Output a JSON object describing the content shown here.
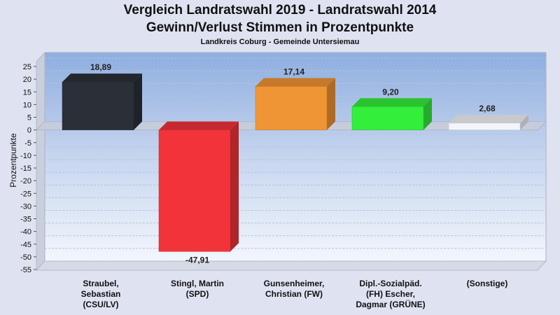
{
  "title": "Vergleich Landratswahl 2019 - Landratswahl 2014",
  "subtitle": "Gewinn/Verlust Stimmen in Prozentpunkte",
  "caption": "Landkreis Coburg - Gemeinde Untersiemau",
  "chart_data": {
    "type": "bar",
    "ylabel": "Prozentpunkte",
    "ylim": [
      -55,
      25
    ],
    "yticks": [
      25,
      20,
      15,
      10,
      5,
      0,
      -5,
      -10,
      -15,
      -20,
      -25,
      -30,
      -35,
      -40,
      -45,
      -50,
      -55
    ],
    "grid": true,
    "categories": [
      [
        "Straubel,",
        "Sebastian",
        "(CSU/LV)"
      ],
      [
        "Stingl, Martin",
        "(SPD)"
      ],
      [
        "Gunsenheimer,",
        "Christian (FW)"
      ],
      [
        "Dipl.-Sozialpäd.",
        "(FH) Escher,",
        "Dagmar (GRÜNE)"
      ],
      [
        "(Sonstige)"
      ]
    ],
    "values": [
      18.89,
      -47.91,
      17.14,
      9.2,
      2.68
    ],
    "value_labels": [
      "18,89",
      "-47,91",
      "17,14",
      "9,20",
      "2,68"
    ],
    "colors": [
      "#2b2f38",
      "#f2333a",
      "#f09535",
      "#33ee3b",
      "#f4f5fa"
    ]
  }
}
